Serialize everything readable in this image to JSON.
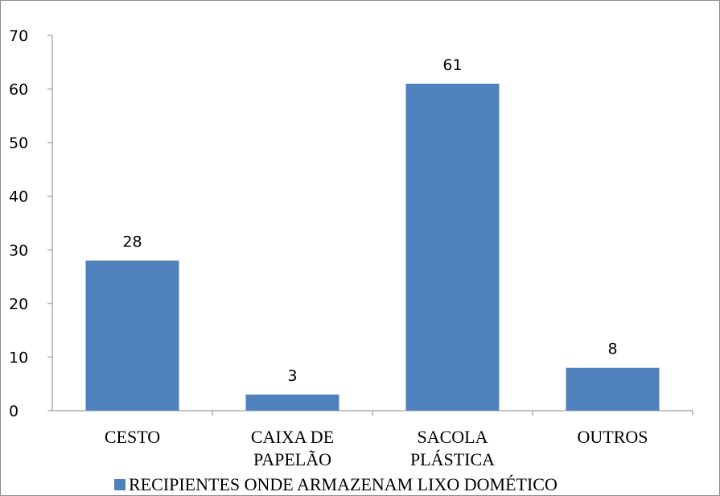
{
  "chart_data": {
    "type": "bar",
    "categories": [
      [
        "CESTO"
      ],
      [
        "CAIXA DE",
        "PAPELÃO"
      ],
      [
        "SACOLA",
        "PLÁSTICA"
      ],
      [
        "OUTROS"
      ]
    ],
    "series": [
      {
        "name": "RECIPIENTES ONDE ARMAZENAM LIXO DOMÉTICO",
        "values": [
          28,
          3,
          61,
          8
        ],
        "color": "#4f81bd"
      }
    ],
    "data_labels": [
      "28",
      "3",
      "61",
      "8"
    ],
    "y_ticks": [
      "0",
      "10",
      "20",
      "30",
      "40",
      "50",
      "60",
      "70"
    ],
    "ylim": [
      0,
      70
    ],
    "grid": false,
    "legend_position": "bottom",
    "title": "",
    "xlabel": "",
    "ylabel": ""
  }
}
